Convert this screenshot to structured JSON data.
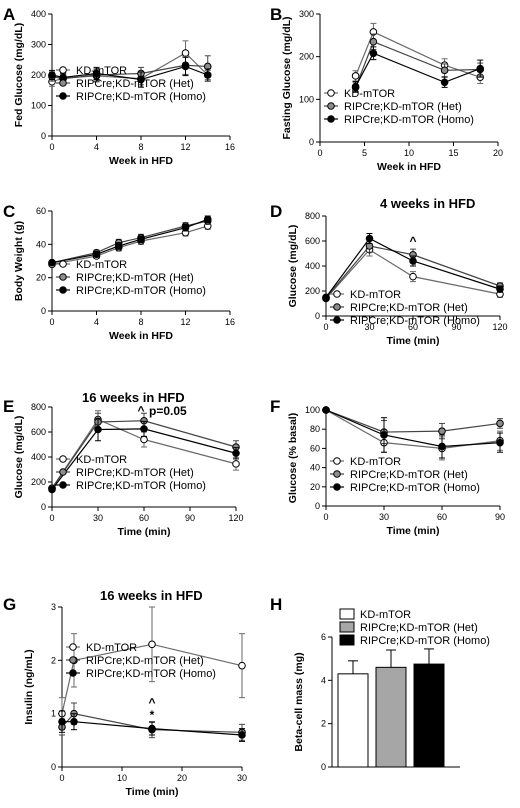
{
  "chart_data": [
    {
      "panel": "A",
      "type": "line",
      "title": "",
      "xlabel": "Week in HFD",
      "ylabel": "Fed Glucose (mg/dL)",
      "xlim": [
        0,
        16
      ],
      "ylim": [
        0,
        400
      ],
      "xticks": [
        0,
        4,
        8,
        12,
        16
      ],
      "yticks": [
        0,
        100,
        200,
        300,
        400
      ],
      "legend": "bottom-left",
      "series": [
        {
          "name": "KD-mTOR",
          "marker": "open",
          "x": [
            0,
            1,
            4,
            8,
            12,
            14
          ],
          "y": [
            178,
            190,
            197,
            188,
            272,
            200
          ],
          "err": [
            15,
            15,
            20,
            20,
            40,
            15
          ]
        },
        {
          "name": "RIPCre;KD-mTOR (Het)",
          "marker": "gray",
          "x": [
            0,
            1,
            4,
            8,
            12,
            14
          ],
          "y": [
            195,
            188,
            200,
            205,
            232,
            228
          ],
          "err": [
            15,
            15,
            20,
            20,
            30,
            35
          ]
        },
        {
          "name": "RIPCre;KD-mTOR (Homo)",
          "marker": "filled",
          "x": [
            0,
            1,
            4,
            8,
            12,
            14
          ],
          "y": [
            200,
            192,
            205,
            185,
            228,
            200
          ],
          "err": [
            15,
            15,
            20,
            25,
            30,
            20
          ]
        }
      ]
    },
    {
      "panel": "B",
      "type": "line",
      "title": "",
      "xlabel": "Week in HFD",
      "ylabel": "Fasting Glucose (mg/dL)",
      "xlim": [
        0,
        20
      ],
      "ylim": [
        0,
        300
      ],
      "xticks": [
        0,
        5,
        10,
        15,
        20
      ],
      "yticks": [
        0,
        100,
        200,
        300
      ],
      "legend": "bottom-left",
      "series": [
        {
          "name": "KD-mTOR",
          "marker": "open",
          "x": [
            4,
            6,
            14,
            18
          ],
          "y": [
            155,
            258,
            180,
            152
          ],
          "err": [
            12,
            20,
            15,
            15
          ]
        },
        {
          "name": "RIPCre;KD-mTOR (Het)",
          "marker": "gray",
          "x": [
            4,
            6,
            14,
            18
          ],
          "y": [
            128,
            235,
            168,
            170
          ],
          "err": [
            12,
            18,
            15,
            15
          ]
        },
        {
          "name": "RIPCre;KD-mTOR (Homo)",
          "marker": "filled",
          "x": [
            4,
            6,
            14,
            18
          ],
          "y": [
            130,
            208,
            140,
            172
          ],
          "err": [
            12,
            15,
            12,
            20
          ]
        }
      ]
    },
    {
      "panel": "C",
      "type": "line",
      "title": "",
      "xlabel": "Week in HFD",
      "ylabel": "Body Weight (g)",
      "xlim": [
        0,
        16
      ],
      "ylim": [
        0,
        60
      ],
      "xticks": [
        0,
        4,
        8,
        12,
        16
      ],
      "yticks": [
        0,
        20,
        40,
        60
      ],
      "legend": "bottom-left",
      "series": [
        {
          "name": "KD-mTOR",
          "marker": "open",
          "x": [
            0,
            4,
            6,
            8,
            12,
            14
          ],
          "y": [
            28,
            33,
            38,
            42,
            47,
            51
          ],
          "err": [
            1,
            1.5,
            2,
            2,
            2,
            2
          ]
        },
        {
          "name": "RIPCre;KD-mTOR (Het)",
          "marker": "gray",
          "x": [
            0,
            4,
            6,
            8,
            12,
            14
          ],
          "y": [
            29,
            35,
            41,
            44,
            51,
            54
          ],
          "err": [
            1,
            1.5,
            2,
            2,
            2,
            2
          ]
        },
        {
          "name": "RIPCre;KD-mTOR (Homo)",
          "marker": "filled",
          "x": [
            0,
            4,
            6,
            8,
            12,
            14
          ],
          "y": [
            29,
            34,
            39,
            43,
            50,
            55
          ],
          "err": [
            1,
            1.5,
            2,
            2,
            2,
            2
          ]
        }
      ]
    },
    {
      "panel": "D",
      "type": "line",
      "title": "4 weeks in HFD",
      "xlabel": "Time (min)",
      "ylabel": "Glucose (mg/dL)",
      "xlim": [
        0,
        120
      ],
      "ylim": [
        0,
        800
      ],
      "xticks": [
        0,
        30,
        60,
        90,
        120
      ],
      "yticks": [
        0,
        200,
        400,
        600,
        800
      ],
      "legend": "bottom-left",
      "annotations": [
        "^",
        "*"
      ],
      "series": [
        {
          "name": "KD-mTOR",
          "marker": "open",
          "x": [
            0,
            30,
            60,
            120
          ],
          "y": [
            140,
            530,
            315,
            175
          ],
          "err": [
            15,
            50,
            40,
            25
          ]
        },
        {
          "name": "RIPCre;KD-mTOR (Het)",
          "marker": "gray",
          "x": [
            0,
            30,
            60,
            120
          ],
          "y": [
            145,
            560,
            490,
            240
          ],
          "err": [
            15,
            50,
            45,
            25
          ]
        },
        {
          "name": "RIPCre;KD-mTOR (Homo)",
          "marker": "filled",
          "x": [
            0,
            30,
            60,
            120
          ],
          "y": [
            150,
            620,
            440,
            215
          ],
          "err": [
            15,
            40,
            40,
            25
          ]
        }
      ]
    },
    {
      "panel": "E",
      "type": "line",
      "title": "16 weeks in HFD",
      "xlabel": "Time (min)",
      "ylabel": "Glucose (mg/dL)",
      "xlim": [
        0,
        120
      ],
      "ylim": [
        0,
        800
      ],
      "xticks": [
        0,
        30,
        60,
        90,
        120
      ],
      "yticks": [
        0,
        200,
        400,
        600,
        800
      ],
      "legend": "bottom-left",
      "annotations": [
        "^",
        "p=0.05"
      ],
      "series": [
        {
          "name": "KD-mTOR",
          "marker": "open",
          "x": [
            0,
            30,
            60,
            120
          ],
          "y": [
            150,
            700,
            540,
            345
          ],
          "err": [
            15,
            70,
            60,
            50
          ]
        },
        {
          "name": "RIPCre;KD-mTOR (Het)",
          "marker": "gray",
          "x": [
            0,
            30,
            60,
            120
          ],
          "y": [
            150,
            680,
            690,
            480
          ],
          "err": [
            15,
            70,
            60,
            50
          ]
        },
        {
          "name": "RIPCre;KD-mTOR (Homo)",
          "marker": "filled",
          "x": [
            0,
            30,
            60,
            120
          ],
          "y": [
            140,
            620,
            625,
            430
          ],
          "err": [
            15,
            90,
            60,
            45
          ]
        }
      ]
    },
    {
      "panel": "F",
      "type": "line",
      "title": "",
      "xlabel": "Time (min)",
      "ylabel": "Glucose (% basal)",
      "xlim": [
        0,
        90
      ],
      "ylim": [
        0,
        100
      ],
      "xticks": [
        0,
        30,
        60,
        90
      ],
      "yticks": [
        0,
        20,
        40,
        60,
        80,
        100
      ],
      "legend": "bottom-left",
      "series": [
        {
          "name": "KD-mTOR",
          "marker": "open",
          "x": [
            0,
            30,
            60,
            90
          ],
          "y": [
            100,
            66,
            60,
            68
          ],
          "err": [
            0,
            10,
            12,
            10
          ]
        },
        {
          "name": "RIPCre;KD-mTOR (Het)",
          "marker": "gray",
          "x": [
            0,
            30,
            60,
            90
          ],
          "y": [
            100,
            77,
            78,
            86
          ],
          "err": [
            0,
            12,
            8,
            5
          ]
        },
        {
          "name": "RIPCre;KD-mTOR (Homo)",
          "marker": "filled",
          "x": [
            0,
            30,
            60,
            90
          ],
          "y": [
            100,
            74,
            62,
            66
          ],
          "err": [
            0,
            18,
            12,
            10
          ]
        }
      ]
    },
    {
      "panel": "G",
      "type": "line",
      "title": "16 weeks in HFD",
      "xlabel": "Time (min)",
      "ylabel": "Insulin (ng/mL)",
      "xlim": [
        0,
        30
      ],
      "ylim": [
        0,
        3
      ],
      "xticks": [
        0,
        10,
        20,
        30
      ],
      "yticks": [
        0,
        1,
        2,
        3
      ],
      "legend": "top-left",
      "annotations": [
        "^",
        "*"
      ],
      "series": [
        {
          "name": "KD-mTOR",
          "marker": "open",
          "x": [
            0,
            2,
            15,
            30
          ],
          "y": [
            1.0,
            2.0,
            2.3,
            1.9
          ],
          "err": [
            0.3,
            0.5,
            0.7,
            0.6
          ]
        },
        {
          "name": "RIPCre;KD-mTOR (Het)",
          "marker": "gray",
          "x": [
            0,
            2,
            15,
            30
          ],
          "y": [
            0.75,
            1.0,
            0.7,
            0.65
          ],
          "err": [
            0.15,
            0.2,
            0.15,
            0.15
          ]
        },
        {
          "name": "RIPCre;KD-mTOR (Homo)",
          "marker": "filled",
          "x": [
            0,
            2,
            15,
            30
          ],
          "y": [
            0.85,
            0.85,
            0.72,
            0.6
          ],
          "err": [
            0.2,
            0.15,
            0.12,
            0.12
          ]
        }
      ]
    },
    {
      "panel": "H",
      "type": "bar",
      "title": "",
      "xlabel": "",
      "ylabel": "Beta-cell mass (mg)",
      "ylim": [
        0,
        6
      ],
      "yticks": [
        0,
        2,
        4,
        6
      ],
      "legend": "top",
      "series": [
        {
          "name": "KD-mTOR",
          "fill": "#ffffff",
          "value": 4.3,
          "err": 0.6
        },
        {
          "name": "RIPCre;KD-mTOR (Het)",
          "fill": "#a6a6a6",
          "value": 4.6,
          "err": 0.8
        },
        {
          "name": "RIPCre;KD-mTOR (Homo)",
          "fill": "#000000",
          "value": 4.75,
          "err": 0.7
        }
      ]
    }
  ]
}
